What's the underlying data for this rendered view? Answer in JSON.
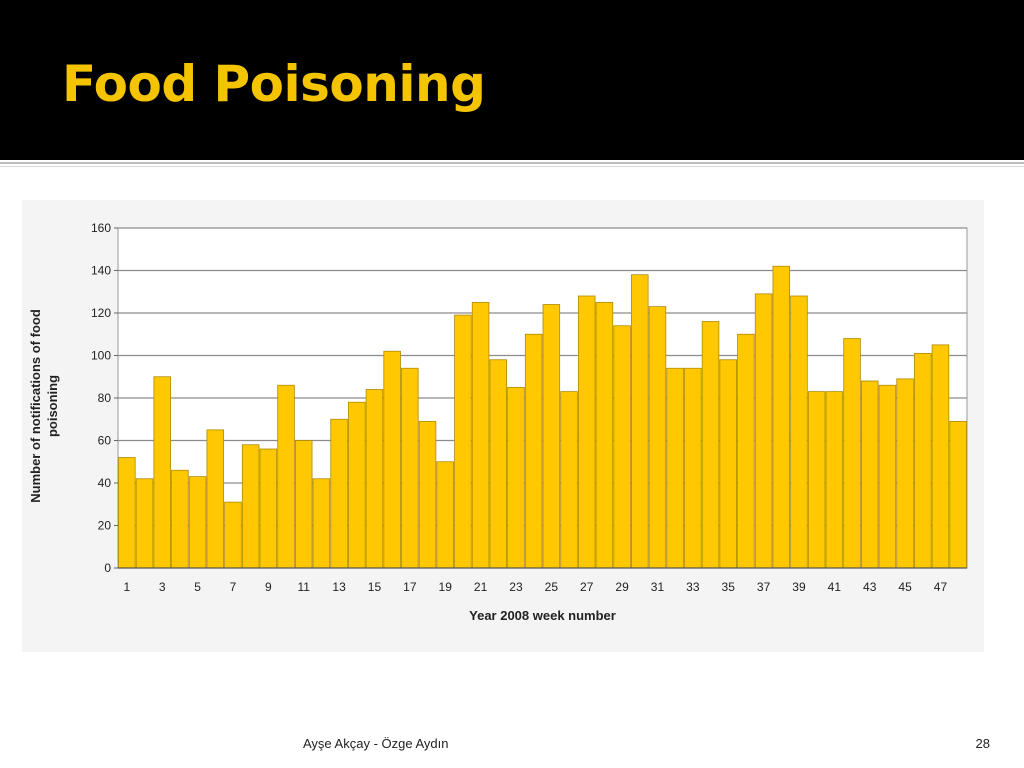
{
  "slide": {
    "title": "Food Poisoning",
    "footer": {
      "author": "Ayşe Akçay - Özge Aydın",
      "page": "28"
    }
  },
  "colors": {
    "header_bg": "#000000",
    "title": "#f5c400",
    "bar_fill": "#ffc800",
    "bar_stroke": "#b08a00"
  },
  "chart_data": {
    "type": "bar",
    "title": "",
    "xlabel": "Year 2008 week number",
    "ylabel": "Number of notifications of food poisoning",
    "ylim": [
      0,
      160
    ],
    "yticks": [
      0,
      20,
      40,
      60,
      80,
      100,
      120,
      140,
      160
    ],
    "grid": "horizontal",
    "categories": [
      "1",
      "2",
      "3",
      "4",
      "5",
      "6",
      "7",
      "8",
      "9",
      "10",
      "11",
      "12",
      "13",
      "14",
      "15",
      "16",
      "17",
      "18",
      "19",
      "20",
      "21",
      "22",
      "23",
      "24",
      "25",
      "26",
      "27",
      "28",
      "29",
      "30",
      "31",
      "32",
      "33",
      "34",
      "35",
      "36",
      "37",
      "38",
      "39",
      "40",
      "41",
      "42",
      "43",
      "44",
      "45",
      "46",
      "47",
      "48"
    ],
    "xtick_labels_shown": [
      "1",
      "3",
      "5",
      "7",
      "9",
      "11",
      "13",
      "15",
      "17",
      "19",
      "21",
      "23",
      "25",
      "27",
      "29",
      "31",
      "33",
      "35",
      "37",
      "39",
      "41",
      "43",
      "45",
      "47"
    ],
    "values": [
      52,
      42,
      90,
      46,
      43,
      65,
      31,
      58,
      56,
      86,
      60,
      42,
      70,
      78,
      84,
      102,
      94,
      69,
      50,
      119,
      125,
      98,
      85,
      110,
      124,
      83,
      128,
      125,
      114,
      138,
      123,
      94,
      94,
      116,
      98,
      110,
      129,
      142,
      128,
      83,
      83,
      108,
      88,
      86,
      89,
      101,
      105,
      69
    ]
  }
}
